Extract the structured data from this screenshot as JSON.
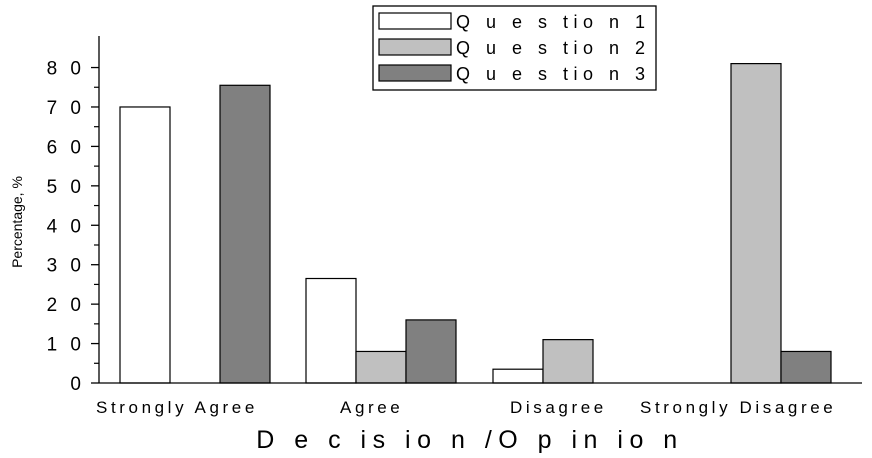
{
  "chart_data": {
    "type": "bar",
    "title": "",
    "xlabel": "D e c is io n /O p in io n",
    "ylabel": "Percentage, %",
    "ylim": [
      0,
      88
    ],
    "yticks": [
      {
        "value": 0,
        "label": "0"
      },
      {
        "value": 10,
        "label": "1 0"
      },
      {
        "value": 20,
        "label": "2 0"
      },
      {
        "value": 30,
        "label": "3 0"
      },
      {
        "value": 40,
        "label": "4 0"
      },
      {
        "value": 50,
        "label": "5 0"
      },
      {
        "value": 60,
        "label": "6 0"
      },
      {
        "value": 70,
        "label": "7 0"
      },
      {
        "value": 80,
        "label": "8 0"
      }
    ],
    "categories": [
      "Strongly Agree",
      "Agree",
      "Disagree",
      "Strongly Disagree"
    ],
    "series": [
      {
        "name": "Q u e s tio n 1",
        "color": "#ffffff",
        "values": [
          70,
          26.5,
          3.5,
          0
        ]
      },
      {
        "name": "Q u e s tio n 2",
        "color": "#c0c0c0",
        "values": [
          0,
          8,
          11,
          81
        ]
      },
      {
        "name": "Q u e s tio n 3",
        "color": "#808080",
        "values": [
          75.5,
          16,
          0,
          8
        ]
      }
    ],
    "legend_position": "top-right",
    "grid": false
  }
}
